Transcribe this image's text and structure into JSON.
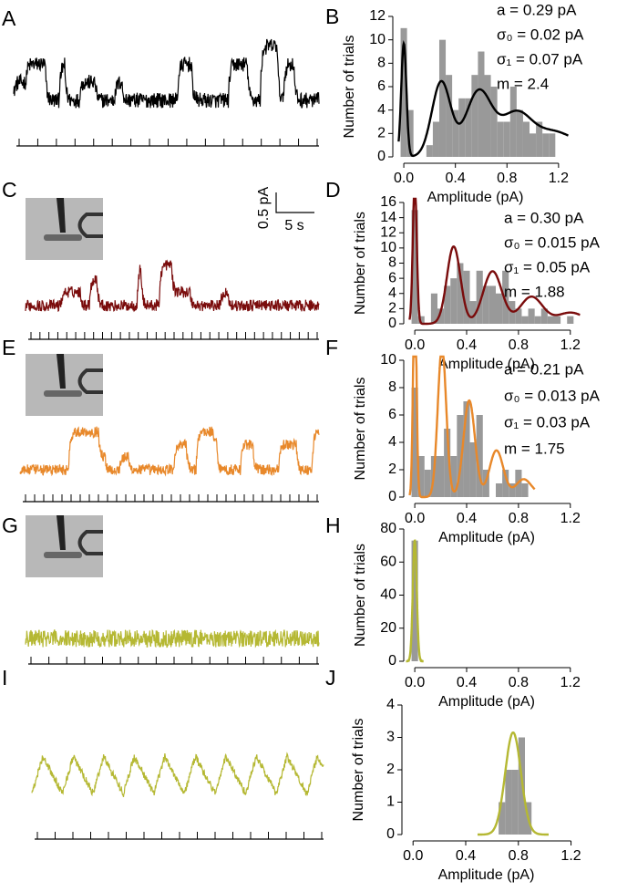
{
  "chart_data": [
    {
      "type": "trace",
      "panel": "A",
      "color": "#000000"
    },
    {
      "type": "histogram",
      "panel": "B",
      "ylabel": "Number of trials",
      "xlabel": "Amplitude (pA)",
      "bins": [
        -0.025,
        0.025,
        0.075,
        0.125,
        0.175,
        0.225,
        0.275,
        0.325,
        0.375,
        0.425,
        0.475,
        0.525,
        0.575,
        0.625,
        0.675,
        0.725,
        0.775,
        0.825,
        0.875,
        0.925,
        0.975,
        1.025,
        1.075,
        1.125,
        1.175,
        1.225
      ],
      "values": [
        11,
        4,
        0,
        0,
        1,
        3,
        10,
        7,
        4,
        5,
        5,
        7,
        9,
        7,
        6,
        3,
        3,
        6,
        4,
        3,
        2,
        3,
        2,
        2,
        0
      ],
      "color": "#999999",
      "fit_color": "#000000",
      "fit": {
        "a": 0.29,
        "sigma0": 0.02,
        "sigma1": 0.07,
        "m": 2.4
      },
      "annotations": [
        "a =  0.29 pA",
        "σ₀ = 0.02 pA",
        "σ₁ = 0.07 pA",
        "m =  2.4"
      ],
      "xlim": [
        -0.05,
        1.3
      ],
      "ylim": [
        0,
        12
      ],
      "xticks": [
        {
          "value": 0,
          "label": "0.0"
        },
        {
          "value": 0.4,
          "label": "0.4"
        },
        {
          "value": 0.8,
          "label": "0.8"
        },
        {
          "value": 1.2,
          "label": "1.2"
        }
      ],
      "yticks": [
        0,
        2,
        4,
        6,
        8,
        10,
        12
      ]
    },
    {
      "type": "trace",
      "panel": "C",
      "color": "#7a0c0c",
      "scale_y": "0.5 pA",
      "scale_x": "5 s"
    },
    {
      "type": "histogram",
      "panel": "D",
      "ylabel": "Number of trials",
      "xlabel": "Amplitude (pA)",
      "bins": [
        -0.025,
        0.025,
        0.075,
        0.125,
        0.175,
        0.225,
        0.275,
        0.325,
        0.375,
        0.425,
        0.475,
        0.525,
        0.575,
        0.625,
        0.675,
        0.725,
        0.775,
        0.825,
        0.875,
        0.925,
        0.975,
        1.025,
        1.075,
        1.125,
        1.175,
        1.225
      ],
      "values": [
        15,
        1,
        0,
        4,
        2,
        5,
        6,
        8,
        7,
        3,
        7,
        5,
        5,
        4,
        7,
        3,
        2,
        1,
        2,
        1,
        2,
        1,
        1,
        0,
        1
      ],
      "color": "#999999",
      "fit_color": "#7a0c0c",
      "fit": {
        "a": 0.3,
        "sigma0": 0.015,
        "sigma1": 0.05,
        "m": 1.88
      },
      "annotations": [
        "a =  0.30 pA",
        "σ₀ = 0.015 pA",
        "σ₁ = 0.05 pA",
        "m =  1.88"
      ],
      "xlim": [
        -0.05,
        1.3
      ],
      "ylim": [
        0,
        16
      ],
      "xticks": [
        {
          "value": 0,
          "label": "0.0"
        },
        {
          "value": 0.4,
          "label": "0.4"
        },
        {
          "value": 0.8,
          "label": "0.8"
        },
        {
          "value": 1.2,
          "label": "1.2"
        }
      ],
      "yticks": [
        0,
        2,
        4,
        6,
        8,
        10,
        12,
        14,
        16
      ]
    },
    {
      "type": "trace",
      "panel": "E",
      "color": "#e8882a"
    },
    {
      "type": "histogram",
      "panel": "F",
      "ylabel": "Number of trials",
      "xlabel": "Amplitude (pA)",
      "bins": [
        -0.025,
        0.025,
        0.075,
        0.125,
        0.175,
        0.225,
        0.275,
        0.325,
        0.375,
        0.425,
        0.475,
        0.525,
        0.575,
        0.625,
        0.675,
        0.725,
        0.775,
        0.825,
        0.875
      ],
      "values": [
        8,
        3,
        2,
        3,
        3,
        5,
        3,
        6,
        7,
        4,
        6,
        2,
        0,
        1,
        2,
        1,
        2,
        1
      ],
      "color": "#999999",
      "fit_color": "#e8882a",
      "fit": {
        "a": 0.21,
        "sigma0": 0.013,
        "sigma1": 0.03,
        "m": 1.75
      },
      "annotations": [
        "a =  0.21 pA",
        "σ₀ = 0.013 pA",
        "σ₁ = 0.03 pA",
        "m =  1.75"
      ],
      "xlim": [
        -0.05,
        1.3
      ],
      "ylim": [
        0,
        10
      ],
      "xticks": [
        {
          "value": 0,
          "label": "0.0"
        },
        {
          "value": 0.4,
          "label": "0.4"
        },
        {
          "value": 0.8,
          "label": "0.8"
        },
        {
          "value": 1.2,
          "label": "1.2"
        }
      ],
      "yticks": [
        0,
        2,
        4,
        6,
        8,
        10
      ]
    },
    {
      "type": "trace",
      "panel": "G",
      "color": "#b5b833"
    },
    {
      "type": "histogram",
      "panel": "H",
      "ylabel": "Number of trials",
      "xlabel": "Amplitude (pA)",
      "bins": [
        -0.025,
        0.025
      ],
      "values": [
        73
      ],
      "color": "#999999",
      "fit_color": "#b5b833",
      "fit": {
        "mean": 0,
        "sd": 0.015,
        "peak": 73
      },
      "xlim": [
        -0.05,
        1.3
      ],
      "ylim": [
        0,
        80
      ],
      "xticks": [
        {
          "value": 0,
          "label": "0.0"
        },
        {
          "value": 0.4,
          "label": "0.4"
        },
        {
          "value": 0.8,
          "label": "0.8"
        },
        {
          "value": 1.2,
          "label": "1.2"
        }
      ],
      "yticks": [
        0,
        20,
        40,
        60,
        80
      ]
    },
    {
      "type": "trace",
      "panel": "I",
      "color": "#b5b833"
    },
    {
      "type": "histogram",
      "panel": "J",
      "ylabel": "Number of trials",
      "xlabel": "Amplitude (pA)",
      "bins": [
        0.65,
        0.7,
        0.75,
        0.8,
        0.85,
        0.9
      ],
      "values": [
        1,
        2,
        2,
        3,
        1
      ],
      "color": "#999999",
      "fit_color": "#b5b833",
      "fit": {
        "mean": 0.76,
        "sd": 0.06,
        "peak": 3.15
      },
      "xlim": [
        -0.05,
        1.3
      ],
      "ylim": [
        0,
        4
      ],
      "xticks": [
        {
          "value": 0,
          "label": "0.0"
        },
        {
          "value": 0.4,
          "label": "0.4"
        },
        {
          "value": 0.8,
          "label": "0.8"
        },
        {
          "value": 1.2,
          "label": "1.2"
        }
      ],
      "yticks": [
        0,
        1,
        2,
        3,
        4
      ]
    }
  ]
}
